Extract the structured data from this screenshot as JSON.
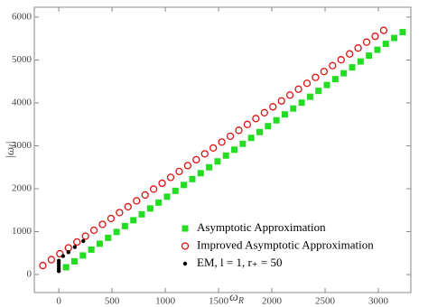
{
  "chart_data": {
    "type": "scatter",
    "x_label": {
      "base": "ω",
      "sub": "R"
    },
    "y_label": {
      "open": "|ω",
      "sub": "I",
      "close": "|"
    },
    "xlim": [
      -230,
      3305
    ],
    "ylim": [
      -420,
      6230
    ],
    "xticks": [
      0,
      500,
      1000,
      1500,
      2000,
      2500,
      3000
    ],
    "yticks": [
      0,
      1000,
      2000,
      3000,
      4000,
      5000,
      6000
    ],
    "legend": "lower right",
    "series": [
      {
        "name": "Asymptotic Approximation",
        "color": "#22dd22",
        "marker": "square",
        "x": [
          68,
          147,
          226,
          305,
          384,
          463,
          542,
          621,
          700,
          779,
          858,
          937,
          1016,
          1095,
          1174,
          1253,
          1332,
          1411,
          1490,
          1569,
          1648,
          1727,
          1806,
          1885,
          1964,
          2043,
          2122,
          2201,
          2280,
          2359,
          2438,
          2517,
          2596,
          2675,
          2754,
          2833,
          2912,
          2991,
          3070,
          3149,
          3228
        ],
        "values": [
          170,
          307,
          444,
          581,
          718,
          855,
          992,
          1129,
          1266,
          1403,
          1540,
          1677,
          1814,
          1951,
          2088,
          2225,
          2362,
          2499,
          2636,
          2773,
          2910,
          3047,
          3184,
          3321,
          3458,
          3595,
          3732,
          3869,
          4006,
          4143,
          4280,
          4417,
          4554,
          4691,
          4828,
          4965,
          5102,
          5239,
          5376,
          5513,
          5650
        ]
      },
      {
        "name": "Improved Asymptotic Approximation",
        "color": "#dd1111",
        "marker": "open-circle",
        "x": [
          -150,
          -70,
          10,
          90,
          170,
          250,
          330,
          410,
          490,
          570,
          650,
          730,
          810,
          890,
          970,
          1050,
          1130,
          1210,
          1290,
          1370,
          1450,
          1530,
          1610,
          1690,
          1770,
          1850,
          1930,
          2010,
          2090,
          2170,
          2250,
          2330,
          2410,
          2490,
          2570,
          2650,
          2730,
          2810,
          2890,
          2970,
          3050
        ],
        "values": [
          210,
          347,
          484,
          621,
          758,
          895,
          1032,
          1169,
          1306,
          1443,
          1580,
          1717,
          1854,
          1991,
          2128,
          2265,
          2402,
          2539,
          2676,
          2813,
          2950,
          3087,
          3224,
          3361,
          3498,
          3635,
          3772,
          3909,
          4046,
          4183,
          4320,
          4457,
          4594,
          4731,
          4868,
          5005,
          5142,
          5279,
          5416,
          5553,
          5690
        ]
      },
      {
        "name": "EM, l = 1, r₊ = 50",
        "color": "#000000",
        "marker": "dot",
        "x": [
          0,
          0,
          0,
          0,
          0,
          40,
          90,
          150,
          230
        ],
        "values": [
          80,
          140,
          200,
          260,
          320,
          430,
          520,
          640,
          780
        ]
      }
    ]
  }
}
